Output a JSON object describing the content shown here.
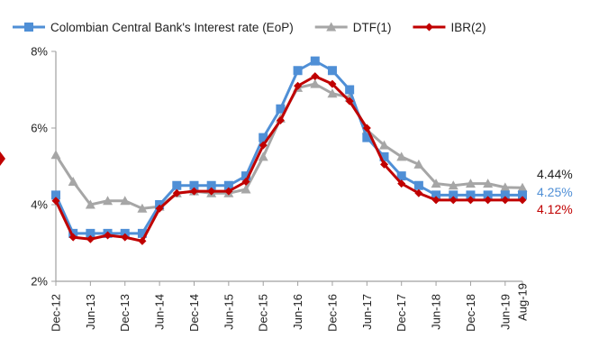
{
  "chart_data": {
    "type": "line",
    "title": "",
    "xlabel": "",
    "ylabel": "",
    "ylim": [
      2,
      8
    ],
    "yticks": [
      "2%",
      "4%",
      "6%",
      "8%"
    ],
    "x_tick_labels": [
      "Dec-12",
      "Jun-13",
      "Dec-13",
      "Jun-14",
      "Dec-14",
      "Jun-15",
      "Dec-15",
      "Jun-16",
      "Dec-16",
      "Jun-17",
      "Dec-17",
      "Jun-18",
      "Dec-18",
      "Jun-19",
      "Aug-19"
    ],
    "x": [
      "Dec-12",
      "Mar-13",
      "Jun-13",
      "Sep-13",
      "Dec-13",
      "Mar-14",
      "Jun-14",
      "Sep-14",
      "Dec-14",
      "Mar-15",
      "Jun-15",
      "Sep-15",
      "Dec-15",
      "Mar-16",
      "Jun-16",
      "Sep-16",
      "Dec-16",
      "Mar-17",
      "Jun-17",
      "Sep-17",
      "Dec-17",
      "Mar-18",
      "Jun-18",
      "Sep-18",
      "Dec-18",
      "Mar-19",
      "Jun-19",
      "Aug-19"
    ],
    "grid": false,
    "legend_position": "top",
    "series": [
      {
        "name": "Colombian Central Bank's Interest rate (EoP)",
        "color": "#4f8fd6",
        "marker": "square",
        "values": [
          4.25,
          3.25,
          3.25,
          3.25,
          3.25,
          3.25,
          4.0,
          4.5,
          4.5,
          4.5,
          4.5,
          4.75,
          5.75,
          6.5,
          7.5,
          7.75,
          7.5,
          7.0,
          5.75,
          5.25,
          4.75,
          4.5,
          4.25,
          4.25,
          4.25,
          4.25,
          4.25,
          4.25
        ]
      },
      {
        "name": "DTF(1)",
        "color": "#a6a6a6",
        "marker": "triangle",
        "values": [
          5.3,
          4.6,
          4.0,
          4.1,
          4.1,
          3.9,
          3.95,
          4.3,
          4.35,
          4.3,
          4.3,
          4.4,
          5.25,
          6.25,
          7.05,
          7.15,
          6.9,
          6.8,
          5.95,
          5.55,
          5.25,
          5.05,
          4.55,
          4.5,
          4.55,
          4.55,
          4.45,
          4.44
        ]
      },
      {
        "name": "IBR(2)",
        "color": "#c00000",
        "marker": "diamond",
        "values": [
          4.1,
          3.15,
          3.1,
          3.2,
          3.15,
          3.05,
          3.9,
          4.3,
          4.35,
          4.35,
          4.35,
          4.6,
          5.55,
          6.2,
          7.1,
          7.35,
          7.15,
          6.7,
          6.0,
          5.05,
          4.55,
          4.3,
          4.12,
          4.12,
          4.12,
          4.12,
          4.12,
          4.12
        ]
      }
    ],
    "end_labels": [
      {
        "text": "4.44%",
        "color": "#222222"
      },
      {
        "text": "4.25%",
        "color": "#4f8fd6"
      },
      {
        "text": "4.12%",
        "color": "#c00000"
      }
    ]
  }
}
